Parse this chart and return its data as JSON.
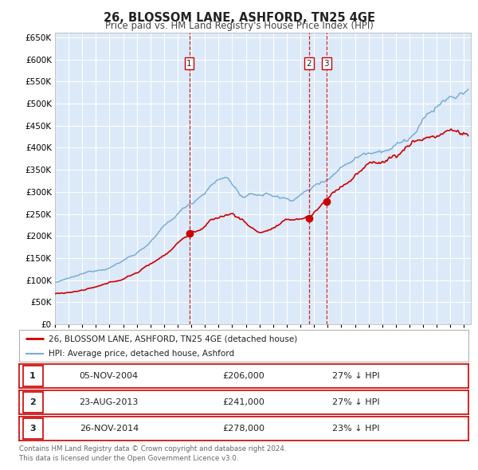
{
  "title": "26, BLOSSOM LANE, ASHFORD, TN25 4GE",
  "subtitle": "Price paid vs. HM Land Registry's House Price Index (HPI)",
  "ylim": [
    0,
    660000
  ],
  "yticks": [
    0,
    50000,
    100000,
    150000,
    200000,
    250000,
    300000,
    350000,
    400000,
    450000,
    500000,
    550000,
    600000,
    650000
  ],
  "xlim_start": 1995.0,
  "xlim_end": 2025.5,
  "background_color": "#ffffff",
  "plot_bg_color": "#dce9f8",
  "grid_color": "#ffffff",
  "red_line_color": "#cc0000",
  "blue_line_color": "#7aadd4",
  "sale_marker_color": "#cc0000",
  "dashed_line_color": "#cc0000",
  "legend_text1": "26, BLOSSOM LANE, ASHFORD, TN25 4GE (detached house)",
  "legend_text2": "HPI: Average price, detached house, Ashford",
  "transactions": [
    {
      "num": 1,
      "date": "05-NOV-2004",
      "price": "£206,000",
      "hpi": "27% ↓ HPI",
      "year": 2004.85
    },
    {
      "num": 2,
      "date": "23-AUG-2013",
      "price": "£241,000",
      "hpi": "27% ↓ HPI",
      "year": 2013.64
    },
    {
      "num": 3,
      "date": "26-NOV-2014",
      "price": "£278,000",
      "hpi": "23% ↓ HPI",
      "year": 2014.9
    }
  ],
  "sale_prices": [
    206000,
    241000,
    278000
  ],
  "footer": "Contains HM Land Registry data © Crown copyright and database right 2024.\nThis data is licensed under the Open Government Licence v3.0."
}
